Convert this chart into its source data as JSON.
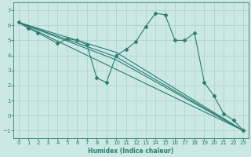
{
  "title": "",
  "xlabel": "Humidex (Indice chaleur)",
  "xlim": [
    -0.5,
    23.5
  ],
  "ylim": [
    -1.5,
    7.5
  ],
  "xticks": [
    0,
    1,
    2,
    3,
    4,
    5,
    6,
    7,
    8,
    9,
    10,
    11,
    12,
    13,
    14,
    15,
    16,
    17,
    18,
    19,
    20,
    21,
    22,
    23
  ],
  "yticks": [
    -1,
    0,
    1,
    2,
    3,
    4,
    5,
    6,
    7
  ],
  "line_color": "#2a7d6f",
  "bg_color": "#cce8e5",
  "grid_color": "#aacfcc",
  "main_x": [
    0,
    1,
    2,
    4,
    5,
    6,
    7,
    8,
    9,
    10,
    11,
    12,
    13,
    14,
    15,
    16,
    17,
    18,
    19,
    20,
    21,
    22,
    23
  ],
  "main_y": [
    6.2,
    5.8,
    5.5,
    4.8,
    5.1,
    5.0,
    4.7,
    2.5,
    2.2,
    4.0,
    4.4,
    4.9,
    5.9,
    6.8,
    6.7,
    5.0,
    5.0,
    5.5,
    2.2,
    1.3,
    0.1,
    -0.3,
    -1.0
  ],
  "line2_x": [
    0,
    23
  ],
  "line2_y": [
    6.2,
    -1.0
  ],
  "line3_x": [
    0,
    10,
    23
  ],
  "line3_y": [
    6.2,
    4.2,
    -1.0
  ],
  "line4_x": [
    0,
    10,
    23
  ],
  "line4_y": [
    6.2,
    3.9,
    -1.0
  ],
  "line5_x": [
    0,
    10,
    23
  ],
  "line5_y": [
    6.2,
    3.7,
    -1.0
  ],
  "marker": "D",
  "markersize": 2.5,
  "linewidth": 0.8,
  "tick_fontsize": 5.0,
  "xlabel_fontsize": 5.5
}
